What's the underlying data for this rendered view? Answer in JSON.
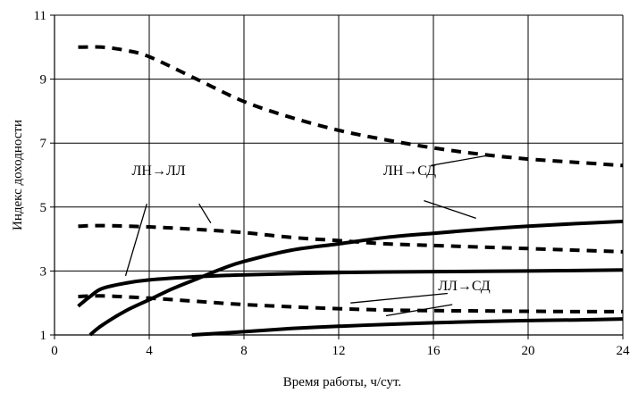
{
  "chart_data": {
    "type": "line",
    "xlabel": "Время работы, ч/сут.",
    "ylabel": "Индекс доходности",
    "xlim": [
      0,
      24
    ],
    "ylim": [
      1,
      11
    ],
    "xticks": [
      0,
      4,
      8,
      12,
      16,
      20,
      24
    ],
    "yticks": [
      1,
      3,
      5,
      7,
      9,
      11
    ],
    "grid": true,
    "series": [
      {
        "style": "dashed",
        "points": [
          [
            1,
            10.0
          ],
          [
            2,
            10.0
          ],
          [
            3,
            9.9
          ],
          [
            4,
            9.7
          ],
          [
            6,
            9.0
          ],
          [
            8,
            8.3
          ],
          [
            10,
            7.8
          ],
          [
            12,
            7.4
          ],
          [
            14,
            7.1
          ],
          [
            16,
            6.85
          ],
          [
            18,
            6.65
          ],
          [
            20,
            6.5
          ],
          [
            22,
            6.4
          ],
          [
            24,
            6.3
          ]
        ]
      },
      {
        "style": "dashed",
        "points": [
          [
            1,
            4.4
          ],
          [
            2,
            4.42
          ],
          [
            4,
            4.38
          ],
          [
            6,
            4.3
          ],
          [
            8,
            4.2
          ],
          [
            10,
            4.05
          ],
          [
            12,
            3.95
          ],
          [
            14,
            3.85
          ],
          [
            16,
            3.8
          ],
          [
            18,
            3.75
          ],
          [
            20,
            3.7
          ],
          [
            22,
            3.65
          ],
          [
            24,
            3.6
          ]
        ]
      },
      {
        "style": "dashed",
        "points": [
          [
            1,
            2.2
          ],
          [
            2,
            2.22
          ],
          [
            4,
            2.15
          ],
          [
            6,
            2.05
          ],
          [
            8,
            1.95
          ],
          [
            10,
            1.88
          ],
          [
            12,
            1.82
          ],
          [
            14,
            1.78
          ],
          [
            16,
            1.76
          ],
          [
            18,
            1.75
          ],
          [
            20,
            1.74
          ],
          [
            22,
            1.73
          ],
          [
            24,
            1.73
          ]
        ]
      },
      {
        "style": "solid",
        "points": [
          [
            1,
            1.9
          ],
          [
            1.5,
            2.2
          ],
          [
            2,
            2.45
          ],
          [
            3,
            2.62
          ],
          [
            4,
            2.72
          ],
          [
            6,
            2.82
          ],
          [
            8,
            2.88
          ],
          [
            12,
            2.95
          ],
          [
            16,
            2.98
          ],
          [
            20,
            3.0
          ],
          [
            24,
            3.03
          ]
        ]
      },
      {
        "style": "solid",
        "points": [
          [
            1.5,
            1.0
          ],
          [
            2,
            1.3
          ],
          [
            3,
            1.75
          ],
          [
            4,
            2.1
          ],
          [
            5,
            2.45
          ],
          [
            6,
            2.75
          ],
          [
            7,
            3.05
          ],
          [
            8,
            3.3
          ],
          [
            10,
            3.65
          ],
          [
            12,
            3.85
          ],
          [
            14,
            4.05
          ],
          [
            16,
            4.18
          ],
          [
            18,
            4.3
          ],
          [
            20,
            4.4
          ],
          [
            22,
            4.48
          ],
          [
            24,
            4.55
          ]
        ]
      },
      {
        "style": "solid",
        "points": [
          [
            5.8,
            1.0
          ],
          [
            8,
            1.1
          ],
          [
            10,
            1.2
          ],
          [
            12,
            1.27
          ],
          [
            14,
            1.33
          ],
          [
            16,
            1.38
          ],
          [
            18,
            1.42
          ],
          [
            20,
            1.45
          ],
          [
            22,
            1.47
          ],
          [
            24,
            1.5
          ]
        ]
      }
    ],
    "annotations": [
      {
        "text": "ЛН→ЛЛ",
        "pos": [
          4.4,
          6.0
        ],
        "leaders": [
          {
            "from": [
              3.9,
              5.1
            ],
            "to": [
              3.0,
              2.85
            ]
          },
          {
            "from": [
              6.1,
              5.1
            ],
            "to": [
              6.6,
              4.5
            ]
          }
        ]
      },
      {
        "text": "ЛН→СД",
        "pos": [
          15.0,
          6.0
        ],
        "leaders": [
          {
            "from": [
              15.9,
              6.3
            ],
            "to": [
              18.2,
              6.6
            ]
          },
          {
            "from": [
              15.6,
              5.2
            ],
            "to": [
              17.8,
              4.65
            ]
          }
        ]
      },
      {
        "text": "ЛЛ→СД",
        "pos": [
          17.3,
          2.4
        ],
        "leaders": [
          {
            "from": [
              12.5,
              2.0
            ],
            "to": [
              16.6,
              2.3
            ]
          },
          {
            "from": [
              14.0,
              1.6
            ],
            "to": [
              16.8,
              1.95
            ]
          }
        ]
      }
    ]
  }
}
